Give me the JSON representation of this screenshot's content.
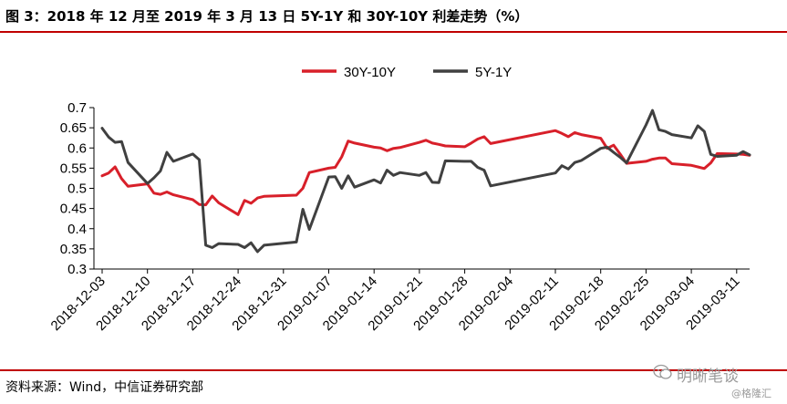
{
  "title": "图 3：2018 年 12 月至 2019 年 3 月 13 日 5Y-1Y 和 30Y-10Y 利差走势（%）",
  "source": "资料来源：Wind，中信证券研究部",
  "watermark": {
    "main": "明晰笔谈",
    "sub": "@格隆汇"
  },
  "colors": {
    "rule": "#c00000",
    "series_30y10y": "#d8202a",
    "series_5y1y": "#404040"
  },
  "chart_data": {
    "type": "line",
    "ylim": [
      0.3,
      0.7
    ],
    "yticks": [
      "0.7",
      "0.65",
      "0.6",
      "0.55",
      "0.5",
      "0.45",
      "0.4",
      "0.35",
      "0.3"
    ],
    "xlim": [
      "2018-12-03",
      "2019-03-13"
    ],
    "xticks": [
      "2018-12-03",
      "2018-12-10",
      "2018-12-17",
      "2018-12-24",
      "2018-12-31",
      "2019-01-07",
      "2019-01-14",
      "2019-01-21",
      "2019-01-28",
      "2019-02-04",
      "2019-02-11",
      "2019-02-18",
      "2019-02-25",
      "2019-03-04",
      "2019-03-11"
    ],
    "legend_position": "top",
    "series": [
      {
        "name": "30Y-10Y",
        "color": "#d8202a",
        "points": [
          [
            "2018-12-03",
            0.531
          ],
          [
            "2018-12-04",
            0.538
          ],
          [
            "2018-12-05",
            0.553
          ],
          [
            "2018-12-06",
            0.524
          ],
          [
            "2018-12-07",
            0.505
          ],
          [
            "2018-12-10",
            0.511
          ],
          [
            "2018-12-11",
            0.488
          ],
          [
            "2018-12-12",
            0.485
          ],
          [
            "2018-12-13",
            0.491
          ],
          [
            "2018-12-14",
            0.484
          ],
          [
            "2018-12-17",
            0.472
          ],
          [
            "2018-12-18",
            0.46
          ],
          [
            "2018-12-19",
            0.459
          ],
          [
            "2018-12-20",
            0.481
          ],
          [
            "2018-12-21",
            0.464
          ],
          [
            "2018-12-24",
            0.435
          ],
          [
            "2018-12-25",
            0.47
          ],
          [
            "2018-12-26",
            0.463
          ],
          [
            "2018-12-27",
            0.476
          ],
          [
            "2018-12-28",
            0.48
          ],
          [
            "2019-01-02",
            0.483
          ],
          [
            "2019-01-03",
            0.5
          ],
          [
            "2019-01-04",
            0.539
          ],
          [
            "2019-01-07",
            0.55
          ],
          [
            "2019-01-08",
            0.552
          ],
          [
            "2019-01-09",
            0.578
          ],
          [
            "2019-01-10",
            0.617
          ],
          [
            "2019-01-11",
            0.612
          ],
          [
            "2019-01-14",
            0.602
          ],
          [
            "2019-01-15",
            0.6
          ],
          [
            "2019-01-16",
            0.593
          ],
          [
            "2019-01-17",
            0.599
          ],
          [
            "2019-01-18",
            0.601
          ],
          [
            "2019-01-21",
            0.614
          ],
          [
            "2019-01-22",
            0.619
          ],
          [
            "2019-01-23",
            0.612
          ],
          [
            "2019-01-24",
            0.609
          ],
          [
            "2019-01-25",
            0.605
          ],
          [
            "2019-01-28",
            0.603
          ],
          [
            "2019-01-29",
            0.612
          ],
          [
            "2019-01-30",
            0.622
          ],
          [
            "2019-01-31",
            0.628
          ],
          [
            "2019-02-01",
            0.611
          ],
          [
            "2019-02-11",
            0.643
          ],
          [
            "2019-02-12",
            0.636
          ],
          [
            "2019-02-13",
            0.628
          ],
          [
            "2019-02-14",
            0.638
          ],
          [
            "2019-02-15",
            0.633
          ],
          [
            "2019-02-18",
            0.624
          ],
          [
            "2019-02-19",
            0.599
          ],
          [
            "2019-02-20",
            0.607
          ],
          [
            "2019-02-21",
            0.585
          ],
          [
            "2019-02-22",
            0.562
          ],
          [
            "2019-02-25",
            0.567
          ],
          [
            "2019-02-26",
            0.572
          ],
          [
            "2019-02-27",
            0.575
          ],
          [
            "2019-02-28",
            0.575
          ],
          [
            "2019-03-01",
            0.561
          ],
          [
            "2019-03-04",
            0.557
          ],
          [
            "2019-03-05",
            0.553
          ],
          [
            "2019-03-06",
            0.549
          ],
          [
            "2019-03-07",
            0.563
          ],
          [
            "2019-03-08",
            0.586
          ],
          [
            "2019-03-11",
            0.585
          ],
          [
            "2019-03-12",
            0.584
          ],
          [
            "2019-03-13",
            0.582
          ]
        ]
      },
      {
        "name": "5Y-1Y",
        "color": "#404040",
        "points": [
          [
            "2018-12-03",
            0.649
          ],
          [
            "2018-12-04",
            0.627
          ],
          [
            "2018-12-05",
            0.614
          ],
          [
            "2018-12-06",
            0.616
          ],
          [
            "2018-12-07",
            0.564
          ],
          [
            "2018-12-10",
            0.512
          ],
          [
            "2018-12-11",
            0.526
          ],
          [
            "2018-12-12",
            0.543
          ],
          [
            "2018-12-13",
            0.589
          ],
          [
            "2018-12-14",
            0.567
          ],
          [
            "2018-12-17",
            0.585
          ],
          [
            "2018-12-18",
            0.571
          ],
          [
            "2018-12-19",
            0.359
          ],
          [
            "2018-12-20",
            0.353
          ],
          [
            "2018-12-21",
            0.363
          ],
          [
            "2018-12-24",
            0.361
          ],
          [
            "2018-12-25",
            0.353
          ],
          [
            "2018-12-26",
            0.365
          ],
          [
            "2018-12-27",
            0.343
          ],
          [
            "2018-12-28",
            0.359
          ],
          [
            "2019-01-02",
            0.367
          ],
          [
            "2019-01-03",
            0.448
          ],
          [
            "2019-01-04",
            0.398
          ],
          [
            "2019-01-07",
            0.528
          ],
          [
            "2019-01-08",
            0.529
          ],
          [
            "2019-01-09",
            0.5
          ],
          [
            "2019-01-10",
            0.531
          ],
          [
            "2019-01-11",
            0.503
          ],
          [
            "2019-01-14",
            0.521
          ],
          [
            "2019-01-15",
            0.513
          ],
          [
            "2019-01-16",
            0.545
          ],
          [
            "2019-01-17",
            0.532
          ],
          [
            "2019-01-18",
            0.539
          ],
          [
            "2019-01-21",
            0.532
          ],
          [
            "2019-01-22",
            0.539
          ],
          [
            "2019-01-23",
            0.515
          ],
          [
            "2019-01-24",
            0.514
          ],
          [
            "2019-01-25",
            0.568
          ],
          [
            "2019-01-28",
            0.567
          ],
          [
            "2019-01-29",
            0.567
          ],
          [
            "2019-01-30",
            0.552
          ],
          [
            "2019-01-31",
            0.545
          ],
          [
            "2019-02-01",
            0.506
          ],
          [
            "2019-02-11",
            0.538
          ],
          [
            "2019-02-12",
            0.556
          ],
          [
            "2019-02-13",
            0.548
          ],
          [
            "2019-02-14",
            0.564
          ],
          [
            "2019-02-15",
            0.569
          ],
          [
            "2019-02-18",
            0.599
          ],
          [
            "2019-02-19",
            0.602
          ],
          [
            "2019-02-20",
            0.589
          ],
          [
            "2019-02-21",
            0.577
          ],
          [
            "2019-02-22",
            0.563
          ],
          [
            "2019-02-25",
            0.657
          ],
          [
            "2019-02-26",
            0.693
          ],
          [
            "2019-02-27",
            0.645
          ],
          [
            "2019-02-28",
            0.641
          ],
          [
            "2019-03-01",
            0.633
          ],
          [
            "2019-03-04",
            0.625
          ],
          [
            "2019-03-05",
            0.655
          ],
          [
            "2019-03-06",
            0.641
          ],
          [
            "2019-03-07",
            0.584
          ],
          [
            "2019-03-08",
            0.579
          ],
          [
            "2019-03-11",
            0.582
          ],
          [
            "2019-03-12",
            0.591
          ],
          [
            "2019-03-13",
            0.583
          ]
        ]
      }
    ]
  }
}
